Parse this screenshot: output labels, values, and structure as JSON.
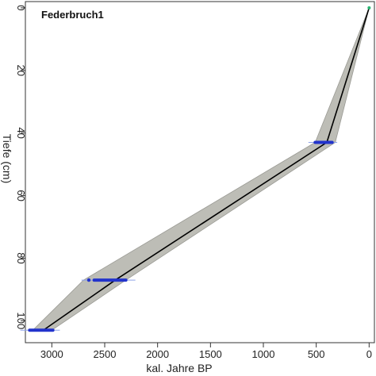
{
  "chart_data": {
    "type": "line",
    "title": "Federbruch1",
    "xlabel": "kal. Jahre BP",
    "ylabel": "Tiefe (cm)",
    "xlim": [
      3250,
      -50
    ],
    "ylim": [
      107,
      -2
    ],
    "x_ticks": [
      3000,
      2500,
      2000,
      1500,
      1000,
      500,
      0
    ],
    "y_ticks": [
      0,
      20,
      40,
      60,
      80,
      100
    ],
    "grid": false,
    "legend": "none",
    "series": [
      {
        "role": "median",
        "color": "#000000",
        "points": [
          [
            0,
            0
          ],
          [
            400,
            43
          ],
          [
            2400,
            87
          ],
          [
            3080,
            103
          ]
        ]
      },
      {
        "role": "lower",
        "color": "#bdbdb6",
        "points": [
          [
            0,
            0
          ],
          [
            320,
            43
          ],
          [
            2300,
            87
          ],
          [
            3000,
            103
          ]
        ]
      },
      {
        "role": "upper",
        "color": "#bdbdb6",
        "points": [
          [
            0,
            0
          ],
          [
            510,
            43
          ],
          [
            2700,
            87
          ],
          [
            3180,
            103
          ]
        ]
      }
    ],
    "dates": [
      {
        "depth": 0,
        "age": 0,
        "spread": 10
      },
      {
        "depth": 43,
        "age": 430,
        "spread": 80
      },
      {
        "depth": 87,
        "age": 2450,
        "spread": 150
      },
      {
        "depth": 103,
        "age": 3100,
        "spread": 110
      }
    ],
    "colors": {
      "envelope": "#bdbdb6",
      "median": "#000000",
      "date_marker": "#2233cc",
      "date_tail": "#8fa3e8",
      "top_marker": "#2bb673"
    }
  }
}
